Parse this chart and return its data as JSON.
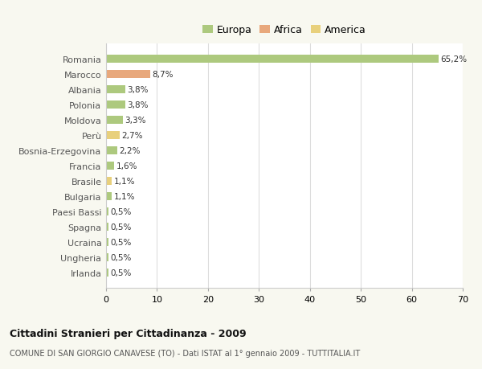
{
  "countries": [
    "Romania",
    "Marocco",
    "Albania",
    "Polonia",
    "Moldova",
    "Perù",
    "Bosnia-Erzegovina",
    "Francia",
    "Brasile",
    "Bulgaria",
    "Paesi Bassi",
    "Spagna",
    "Ucraina",
    "Ungheria",
    "Irlanda"
  ],
  "values": [
    65.2,
    8.7,
    3.8,
    3.8,
    3.3,
    2.7,
    2.2,
    1.6,
    1.1,
    1.1,
    0.5,
    0.5,
    0.5,
    0.5,
    0.5
  ],
  "labels": [
    "65,2%",
    "8,7%",
    "3,8%",
    "3,8%",
    "3,3%",
    "2,7%",
    "2,2%",
    "1,6%",
    "1,1%",
    "1,1%",
    "0,5%",
    "0,5%",
    "0,5%",
    "0,5%",
    "0,5%"
  ],
  "continents": [
    "Europa",
    "Africa",
    "Europa",
    "Europa",
    "Europa",
    "America",
    "Europa",
    "Europa",
    "America",
    "Europa",
    "Europa",
    "Europa",
    "Europa",
    "Europa",
    "Europa"
  ],
  "colors": {
    "Europa": "#adc97e",
    "Africa": "#e8a87c",
    "America": "#e8d07c"
  },
  "xlim": [
    0,
    70
  ],
  "xticks": [
    0,
    10,
    20,
    30,
    40,
    50,
    60,
    70
  ],
  "title": "Cittadini Stranieri per Cittadinanza - 2009",
  "subtitle": "COMUNE DI SAN GIORGIO CANAVESE (TO) - Dati ISTAT al 1° gennaio 2009 - TUTTITALIA.IT",
  "bg_color": "#f8f8f0",
  "plot_bg_color": "#ffffff",
  "grid_color": "#dddddd",
  "bar_height": 0.55,
  "legend_order": [
    "Europa",
    "Africa",
    "America"
  ],
  "legend_colors": [
    "#adc97e",
    "#e8a87c",
    "#e8d07c"
  ]
}
